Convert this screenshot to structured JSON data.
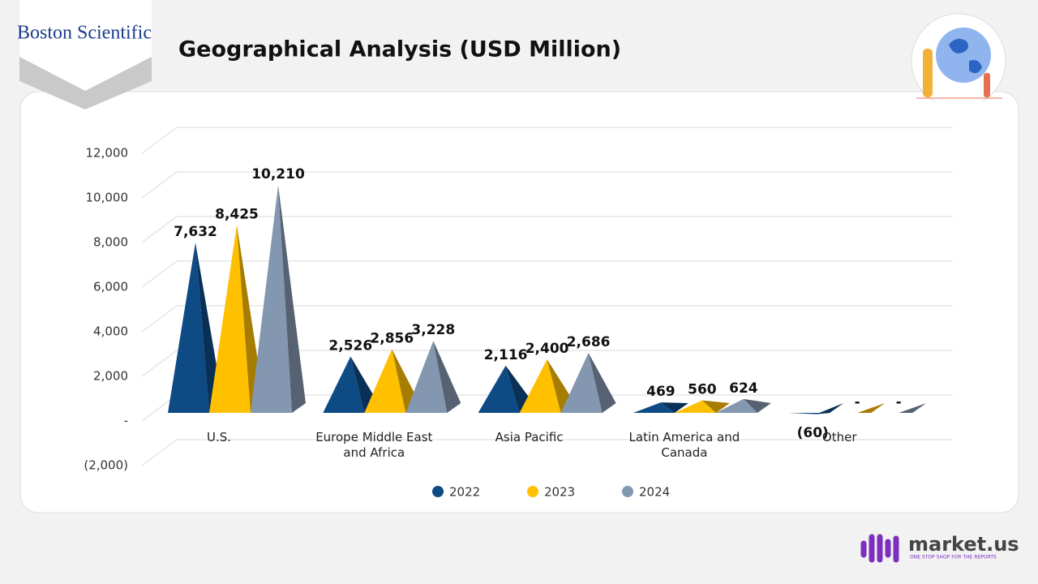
{
  "branding": {
    "company": "Boston Scientific",
    "publisher": "market.us",
    "tagline": "ONE STOP SHOP FOR THE REPORTS"
  },
  "chart_data": {
    "type": "bar",
    "title": "Geographical Analysis (USD Million)",
    "categories": [
      "U.S.",
      "Europe Middle East and Africa",
      "Asia Pacific",
      "Latin America and Canada",
      "Other"
    ],
    "series": [
      {
        "name": "2022",
        "color": "#0e4a84",
        "values": [
          7632,
          2526,
          2116,
          469,
          -60
        ],
        "value_labels": [
          "7,632",
          "2,526",
          "2,116",
          "469",
          "(60)"
        ]
      },
      {
        "name": "2023",
        "color": "#ffc000",
        "values": [
          8425,
          2856,
          2400,
          560,
          0
        ],
        "value_labels": [
          "8,425",
          "2,856",
          "2,400",
          "560",
          "-"
        ]
      },
      {
        "name": "2024",
        "color": "#8497b0",
        "values": [
          10210,
          3228,
          2686,
          624,
          0
        ],
        "value_labels": [
          "10,210",
          "3,228",
          "2,686",
          "624",
          "-"
        ]
      }
    ],
    "ylim": [
      -2000,
      12000
    ],
    "yticks": [
      {
        "value": -2000,
        "label": "(2,000)"
      },
      {
        "value": 0,
        "label": "-"
      },
      {
        "value": 2000,
        "label": "2,000"
      },
      {
        "value": 4000,
        "label": "4,000"
      },
      {
        "value": 6000,
        "label": "6,000"
      },
      {
        "value": 8000,
        "label": "8,000"
      },
      {
        "value": 10000,
        "label": "10,000"
      },
      {
        "value": 12000,
        "label": "12,000"
      }
    ],
    "grid": true,
    "legend": "bottom"
  }
}
